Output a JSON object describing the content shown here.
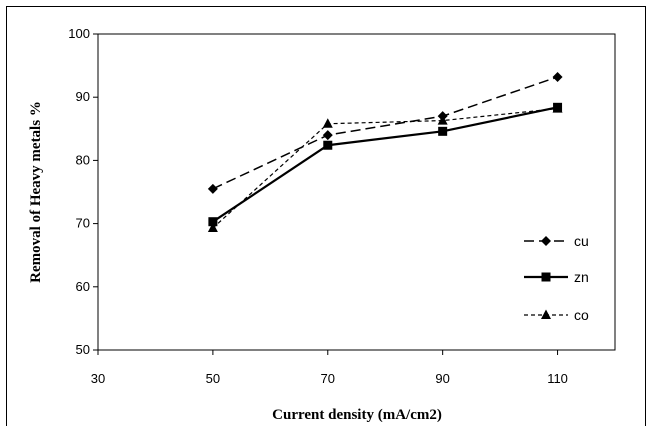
{
  "chart_data": {
    "type": "line",
    "title": "",
    "xlabel": "Current  density (mA/cm2)",
    "ylabel": "Removal of Heavy metals %",
    "xlim": [
      30,
      120
    ],
    "ylim": [
      50,
      100
    ],
    "xticks": [
      30,
      50,
      70,
      90,
      110
    ],
    "yticks": [
      50,
      60,
      70,
      80,
      90,
      100
    ],
    "x": [
      50,
      70,
      90,
      110
    ],
    "grid": false,
    "legend_position": "right",
    "series": [
      {
        "name": "cu",
        "values": [
          75.5,
          84.0,
          87.0,
          93.2
        ],
        "marker": "diamond",
        "dash": "long-dash",
        "color": "#000000"
      },
      {
        "name": "zn",
        "values": [
          70.3,
          82.4,
          84.6,
          88.4
        ],
        "marker": "square",
        "dash": "solid",
        "color": "#000000"
      },
      {
        "name": "co",
        "values": [
          69.3,
          85.8,
          86.3,
          88.2
        ],
        "marker": "triangle",
        "dash": "short-dash",
        "color": "#000000"
      }
    ]
  }
}
